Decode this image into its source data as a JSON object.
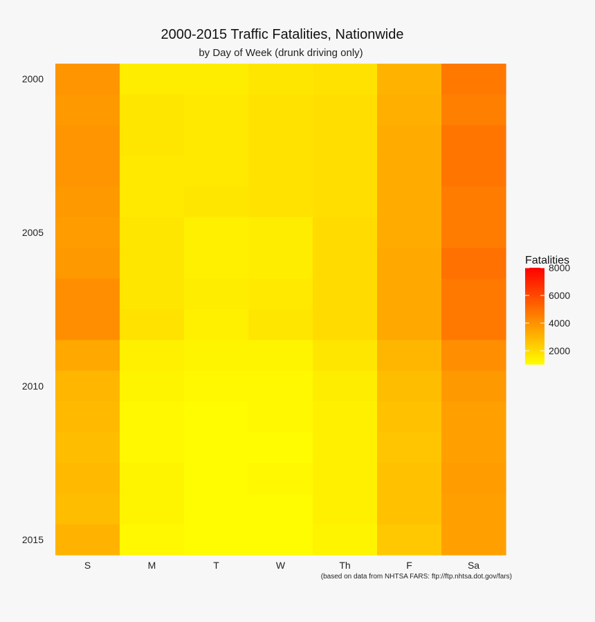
{
  "chart_data": {
    "type": "heatmap",
    "title": "2000-2015 Traffic Fatalities, Nationwide",
    "subtitle": "by Day of Week (drunk driving only)",
    "caption": "(based on data from NHTSA FARS: ftp://ftp.nhtsa.dot.gov/fars)",
    "x": [
      "S",
      "M",
      "T",
      "W",
      "Th",
      "F",
      "Sa"
    ],
    "y": [
      2000,
      2001,
      2002,
      2003,
      2004,
      2005,
      2006,
      2007,
      2008,
      2009,
      2010,
      2011,
      2012,
      2013,
      2014,
      2015
    ],
    "y_tick_labels": [
      "2000",
      "2005",
      "2010",
      "2015"
    ],
    "values": [
      [
        3900,
        1500,
        1500,
        1700,
        1800,
        3100,
        4700
      ],
      [
        3800,
        1700,
        1600,
        1800,
        1900,
        3200,
        4500
      ],
      [
        3900,
        1700,
        1600,
        1800,
        1900,
        3300,
        4800
      ],
      [
        3900,
        1600,
        1600,
        1800,
        1900,
        3300,
        4800
      ],
      [
        3800,
        1600,
        1700,
        1800,
        1900,
        3300,
        4600
      ],
      [
        3700,
        1700,
        1400,
        1500,
        2000,
        3300,
        4600
      ],
      [
        3800,
        1700,
        1400,
        1500,
        2000,
        3400,
        4900
      ],
      [
        4100,
        1700,
        1500,
        1600,
        2000,
        3400,
        4700
      ],
      [
        4100,
        1800,
        1400,
        1700,
        2000,
        3400,
        4700
      ],
      [
        3400,
        1400,
        1300,
        1300,
        1700,
        3000,
        4100
      ],
      [
        3000,
        1300,
        1200,
        1200,
        1500,
        2800,
        3800
      ],
      [
        2900,
        1200,
        1100,
        1200,
        1400,
        2700,
        3600
      ],
      [
        2800,
        1200,
        1100,
        1100,
        1400,
        2600,
        3600
      ],
      [
        2900,
        1300,
        1100,
        1200,
        1400,
        2700,
        3700
      ],
      [
        2800,
        1300,
        1100,
        1100,
        1400,
        2700,
        3600
      ],
      [
        3100,
        1200,
        1100,
        1100,
        1300,
        2500,
        3600
      ]
    ],
    "color_scale": {
      "title": "Fatalities",
      "low": "#ffff00",
      "high": "#ff0000",
      "domain": [
        1000,
        8000
      ],
      "ticks": [
        2000,
        4000,
        6000,
        8000
      ]
    }
  }
}
